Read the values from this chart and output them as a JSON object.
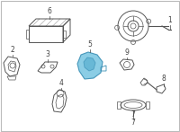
{
  "bg_color": "#ffffff",
  "highlight_color": "#7ec8e3",
  "line_color": "#555555",
  "text_color": "#444444",
  "fig_w": 2.0,
  "fig_h": 1.47,
  "dpi": 100
}
